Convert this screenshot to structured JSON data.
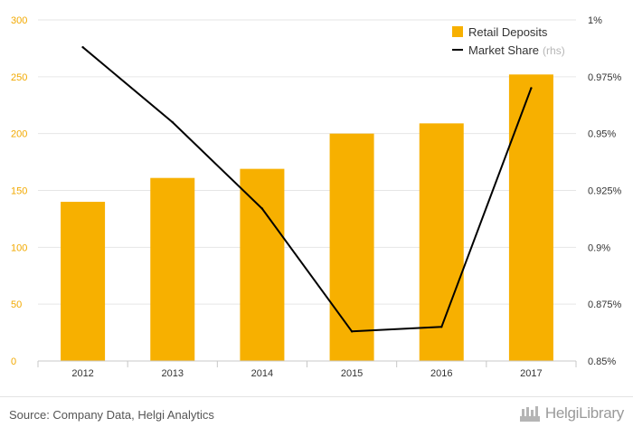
{
  "chart_data": {
    "type": "bar",
    "categories": [
      "2012",
      "2013",
      "2014",
      "2015",
      "2016",
      "2017"
    ],
    "series": [
      {
        "name": "Retail Deposits",
        "type": "bar",
        "axis": "left",
        "values": [
          140,
          161,
          169,
          200,
          209,
          252
        ]
      },
      {
        "name": "Market Share",
        "type": "line",
        "axis": "right",
        "values": [
          0.988,
          0.955,
          0.917,
          0.863,
          0.865,
          0.97
        ]
      }
    ],
    "y_left": {
      "min": 0,
      "max": 300,
      "ticks": [
        0,
        50,
        100,
        150,
        200,
        250,
        300
      ]
    },
    "y_right": {
      "min": 0.85,
      "max": 1.0,
      "ticks": [
        0.85,
        0.875,
        0.9,
        0.925,
        0.95,
        0.975,
        1.0
      ],
      "tick_labels": [
        "0.85%",
        "0.875%",
        "0.9%",
        "0.925%",
        "0.95%",
        "0.975%",
        "1%"
      ]
    },
    "legend_position": "top-right",
    "legend_note": "(rhs)",
    "grid": true,
    "colors": {
      "bar": "#f7b000",
      "line": "#000000",
      "left_ticks": "#f2a900",
      "grid": "#e6e6e6"
    }
  },
  "footer": {
    "source": "Source: Company Data, Helgi Analytics",
    "logo_text": "HelgiLibrary"
  }
}
